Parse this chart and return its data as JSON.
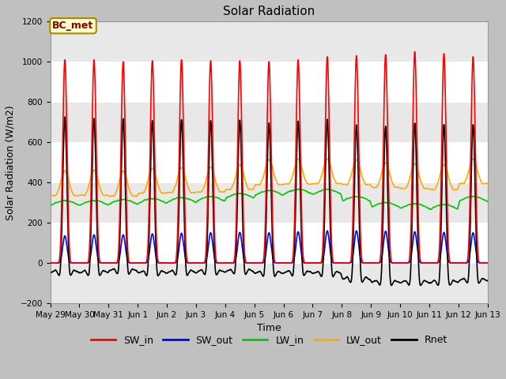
{
  "title": "Solar Radiation",
  "xlabel": "Time",
  "ylabel": "Solar Radiation (W/m2)",
  "ylim": [
    -200,
    1200
  ],
  "yticks": [
    -200,
    0,
    200,
    400,
    600,
    800,
    1000,
    1200
  ],
  "fig_bg_color": "#c8c8c8",
  "plot_bg_color": "#ffffff",
  "legend_labels": [
    "SW_in",
    "SW_out",
    "LW_in",
    "LW_out",
    "Rnet"
  ],
  "legend_colors": [
    "#ff0000",
    "#0000ff",
    "#00cc00",
    "#ffaa00",
    "#000000"
  ],
  "line_widths": [
    1.2,
    1.2,
    1.2,
    1.2,
    1.2
  ],
  "annotation_text": "BC_met",
  "annotation_color": "#8b0000",
  "annotation_bg": "#ffffcc",
  "annotation_border": "#aa8800",
  "x_tick_labels": [
    "May 29",
    "May 30",
    "May 31",
    "Jun 1",
    "Jun 2",
    "Jun 3",
    "Jun 4",
    "Jun 5",
    "Jun 6",
    "Jun 7",
    "Jun 8",
    "Jun 9",
    "Jun 10",
    "Jun 11",
    "Jun 12",
    "Jun 13"
  ],
  "n_days": 15,
  "pts_per_day": 288
}
